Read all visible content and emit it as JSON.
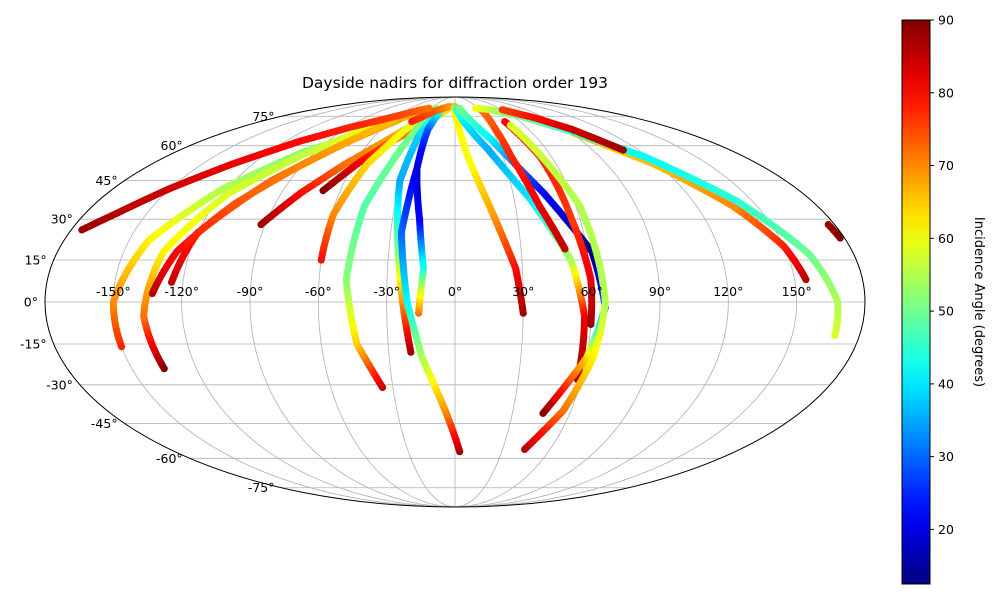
{
  "chart_data": {
    "type": "scatter",
    "projection": "mollweide",
    "title": "Dayside nadirs for diffraction order 193",
    "grid": true,
    "lon_ticks": [
      -150,
      -120,
      -90,
      -60,
      -30,
      0,
      30,
      60,
      90,
      120,
      150
    ],
    "lat_ticks": [
      -75,
      -60,
      -45,
      -30,
      -15,
      0,
      15,
      30,
      45,
      60,
      75
    ],
    "lon_tick_labels": [
      "-150°",
      "-120°",
      "-90°",
      "-60°",
      "-30°",
      "0°",
      "30°",
      "60°",
      "90°",
      "120°",
      "150°"
    ],
    "lat_tick_labels": [
      "-75°",
      "-60°",
      "-45°",
      "-30°",
      "-15°",
      "0°",
      "15°",
      "30°",
      "45°",
      "60°",
      "75°"
    ],
    "colorbar": {
      "label": "Incidence Angle (degrees)",
      "colormap": "jet",
      "range": [
        12.5,
        90
      ],
      "ticks": [
        20,
        30,
        40,
        50,
        60,
        70,
        80,
        90
      ],
      "tick_labels": [
        "20",
        "30",
        "40",
        "50",
        "60",
        "70",
        "80",
        "90"
      ]
    },
    "tracks": [
      {
        "lon": [
          -150,
          -150,
          -141,
          -122,
          -98,
          -72,
          -55,
          -50,
          -47
        ],
        "lat": [
          -16,
          0,
          22,
          42,
          57,
          66,
          72,
          76,
          78
        ],
        "inc": [
          78,
          70,
          62,
          55,
          52,
          50,
          52,
          56,
          60
        ]
      },
      {
        "lon": [
          -135,
          -137,
          -132,
          -117,
          -96,
          -73,
          -55,
          -44
        ],
        "lat": [
          -24,
          -5,
          18,
          40,
          56,
          68,
          74,
          79
        ],
        "inc": [
          90,
          72,
          62,
          58,
          56,
          60,
          63,
          65
        ]
      },
      {
        "lon": [
          -125,
          -120,
          -100,
          -75,
          -55,
          -40
        ],
        "lat": [
          7,
          25,
          45,
          62,
          73,
          79
        ],
        "inc": [
          85,
          78,
          73,
          70,
          68,
          66
        ]
      },
      {
        "lon": [
          -133,
          -126,
          -110,
          -90,
          -72,
          -58
        ],
        "lat": [
          3,
          18,
          36,
          52,
          64,
          73
        ],
        "inc": [
          86,
          80,
          74,
          70,
          67,
          66
        ]
      },
      {
        "lon": [
          -92,
          -80,
          -65,
          -45,
          -30,
          -18
        ],
        "lat": [
          28,
          40,
          52,
          65,
          75,
          80
        ],
        "inc": [
          88,
          80,
          72,
          68,
          64,
          62
        ]
      },
      {
        "lon": [
          -69,
          -58,
          -45,
          -25,
          -8
        ],
        "lat": [
          41,
          52,
          62,
          72,
          80
        ],
        "inc": [
          90,
          82,
          74,
          68,
          62
        ]
      },
      {
        "lon": [
          -60,
          -59,
          -52,
          -40,
          -28
        ],
        "lat": [
          15,
          32,
          52,
          68,
          78
        ],
        "inc": [
          80,
          70,
          64,
          60,
          58
        ]
      },
      {
        "lon": [
          -35,
          -44,
          -48,
          -45,
          -35,
          -26
        ],
        "lat": [
          -31,
          -15,
          8,
          35,
          60,
          80
        ],
        "inc": [
          85,
          65,
          52,
          48,
          50,
          52
        ]
      },
      {
        "lon": [
          -20,
          -23,
          -26,
          -30,
          -27,
          -20
        ],
        "lat": [
          -18,
          0,
          20,
          45,
          65,
          78
        ],
        "inc": [
          88,
          70,
          50,
          35,
          38,
          45
        ]
      },
      {
        "lon": [
          -16,
          -14,
          -17,
          -22,
          -22,
          -17
        ],
        "lat": [
          -4,
          12,
          30,
          50,
          68,
          80
        ],
        "inc": [
          72,
          45,
          22,
          18,
          28,
          45
        ]
      },
      {
        "lon": [
          3,
          -5,
          -15,
          -21,
          -25,
          -22
        ],
        "lat": [
          -57,
          -40,
          -20,
          0,
          25,
          50
        ],
        "inc": [
          88,
          70,
          55,
          42,
          30,
          20
        ]
      },
      {
        "lon": [
          -40,
          -25,
          -10,
          0
        ],
        "lat": [
          72,
          78,
          81,
          81
        ],
        "inc": [
          78,
          74,
          70,
          68
        ]
      },
      {
        "lon": [
          30,
          27,
          18,
          8,
          -1
        ],
        "lat": [
          -4,
          12,
          33,
          55,
          80
        ],
        "inc": [
          88,
          80,
          68,
          60,
          62
        ]
      },
      {
        "lon": [
          58,
          57,
          52,
          38,
          22,
          8,
          1
        ],
        "lat": [
          -28,
          -5,
          15,
          38,
          58,
          72,
          80
        ],
        "inc": [
          88,
          82,
          55,
          40,
          35,
          40,
          46
        ]
      },
      {
        "lon": [
          46,
          60,
          66,
          62,
          46,
          26,
          6
        ],
        "lat": [
          -41,
          -20,
          -2,
          18,
          40,
          63,
          80
        ],
        "inc": [
          90,
          65,
          30,
          12,
          22,
          40,
          50
        ]
      },
      {
        "lon": [
          50,
          42,
          35,
          33,
          33
        ],
        "lat": [
          19,
          35,
          55,
          68,
          79
        ],
        "inc": [
          85,
          82,
          78,
          75,
          72
        ]
      },
      {
        "lon": [
          60,
          60,
          56,
          53,
          46
        ],
        "lat": [
          -8,
          8,
          30,
          55,
          72
        ],
        "inc": [
          88,
          82,
          76,
          78,
          80
        ]
      },
      {
        "lon": [
          44,
          56,
          63,
          66,
          62,
          48
        ],
        "lat": [
          -56,
          -40,
          -20,
          0,
          35,
          70
        ],
        "inc": [
          86,
          72,
          62,
          55,
          55,
          58
        ]
      },
      {
        "lon": [
          155,
          150,
          138,
          118,
          92
        ],
        "lat": [
          8,
          20,
          35,
          52,
          66
        ],
        "inc": [
          86,
          78,
          70,
          66,
          65
        ]
      },
      {
        "lon": [
          169,
          168,
          160,
          142,
          118,
          92,
          68,
          45,
          28
        ],
        "lat": [
          -12,
          0,
          17,
          37,
          55,
          67,
          75,
          79,
          80
        ],
        "inc": [
          58,
          55,
          50,
          45,
          42,
          45,
          50,
          55,
          60
        ]
      },
      {
        "lon": [
          110,
          95,
          80,
          60
        ],
        "lat": [
          58,
          68,
          74,
          79
        ],
        "inc": [
          88,
          84,
          80,
          76
        ]
      },
      {
        "lon": [
          -175,
          -165,
          -150,
          -132,
          -110,
          -88,
          -66,
          -48,
          -35
        ],
        "lat": [
          26,
          32,
          42,
          52,
          62,
          69,
          74,
          78,
          80
        ],
        "inc": [
          88,
          86,
          84,
          82,
          80,
          78,
          76,
          74,
          72
        ]
      },
      {
        "lon": [
          178,
          177
        ],
        "lat": [
          23,
          28
        ],
        "inc": [
          90,
          88
        ]
      }
    ]
  }
}
